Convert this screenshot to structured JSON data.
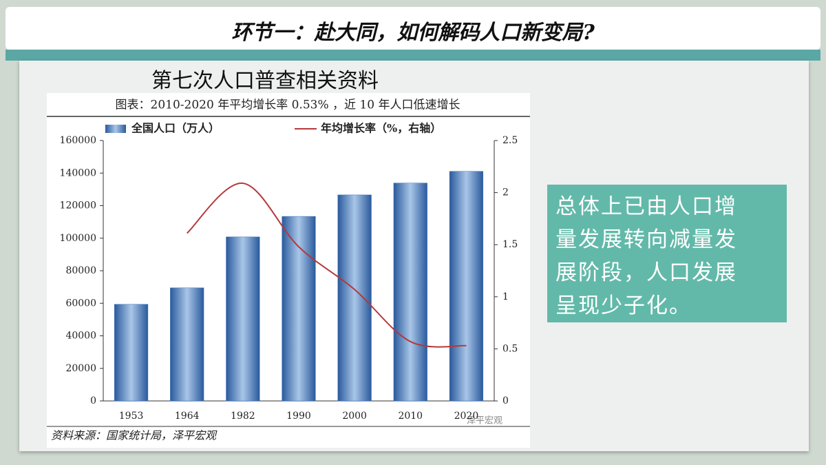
{
  "slide_title": "环节一：赴大同，如何解码人口新变局?",
  "section_heading": "第七次人口普查相关资料",
  "summary_lines": [
    "总体上已由人口增",
    "量发展转向减量发",
    "展阶段，人口发展",
    "呈现少子化。"
  ],
  "chart_data": {
    "type": "bar",
    "title": "图表：2010-2020 年平均增长率 0.53% ，近 10 年人口低速增长",
    "source": "资料来源：国家统计局，泽平宏观",
    "watermark": "泽平宏观",
    "categories": [
      "1953",
      "1964",
      "1982",
      "1990",
      "2000",
      "2010",
      "2020"
    ],
    "series": [
      {
        "name": "全国人口（万人）",
        "type": "bar",
        "color": "#3f73b8",
        "values": [
          59400,
          69500,
          100800,
          113400,
          126600,
          133900,
          141100
        ]
      },
      {
        "name": "年均增长率（%，右轴）",
        "type": "line",
        "axis": "y2",
        "color": "#b5383a",
        "values": [
          null,
          1.61,
          2.09,
          1.48,
          1.07,
          0.57,
          0.53
        ]
      }
    ],
    "ylim": [
      0,
      160000
    ],
    "yticks": [
      0,
      20000,
      40000,
      60000,
      80000,
      100000,
      120000,
      140000,
      160000
    ],
    "y2lim": [
      0,
      2.5
    ],
    "y2ticks": [
      0,
      0.5,
      1,
      1.5,
      2,
      2.5
    ],
    "grid": false,
    "legend": "top"
  }
}
